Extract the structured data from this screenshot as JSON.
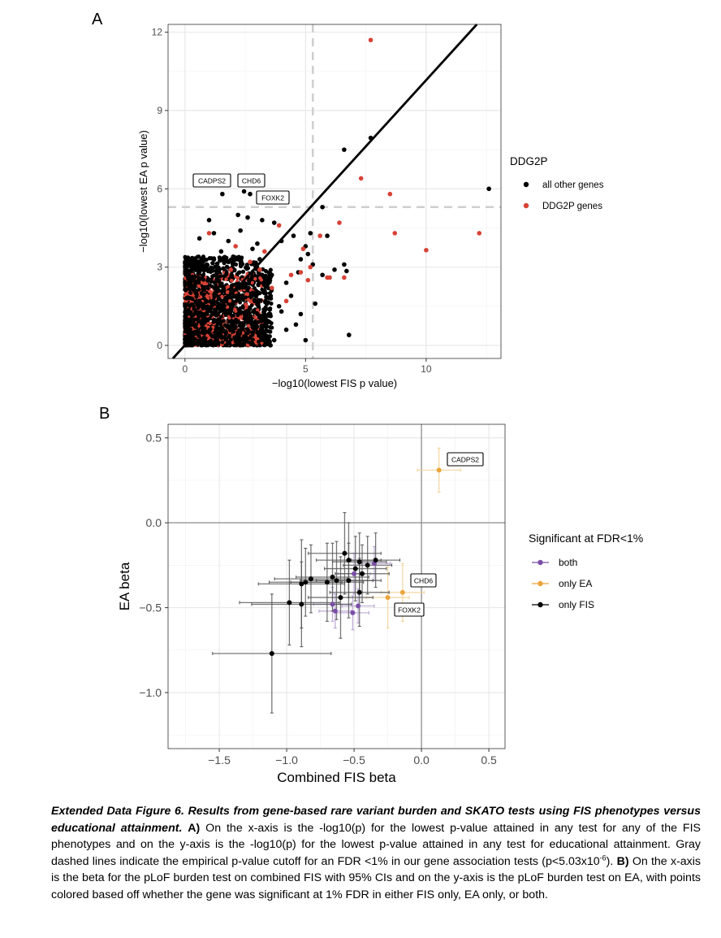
{
  "panel_a_letter": "A",
  "panel_b_letter": "B",
  "chart_data": [
    {
      "type": "scatter",
      "xlabel": "−log10(lowest FIS p value)",
      "ylabel": "−log10(lowest EA p value)",
      "xlim": [
        -0.7,
        13.1
      ],
      "ylim": [
        -0.5,
        12.3
      ],
      "xticks": [
        0,
        5,
        10
      ],
      "xtick_labels": [
        "0",
        "5",
        "10"
      ],
      "yticks": [
        0,
        3,
        6,
        9,
        12
      ],
      "ytick_labels": [
        "0",
        "3",
        "6",
        "9",
        "12"
      ],
      "grid": true,
      "reference_lines": {
        "diagonal": "y = x",
        "vertical_dashed_x": 5.3,
        "horizontal_dashed_y": 5.3
      },
      "legend": {
        "title": "DDG2P",
        "placement": "right"
      },
      "series": [
        {
          "name": "all other genes",
          "color": "#000000",
          "points": [
            [
              7.7,
              7.95
            ],
            [
              6.6,
              7.5
            ],
            [
              12.6,
              6.0
            ],
            [
              1.55,
              5.8
            ],
            [
              2.45,
              5.9
            ],
            [
              2.7,
              5.8
            ],
            [
              5.7,
              5.3
            ],
            [
              2.2,
              5.0
            ],
            [
              2.6,
              4.9
            ],
            [
              3.2,
              4.8
            ],
            [
              3.7,
              4.7
            ],
            [
              1.0,
              4.8
            ],
            [
              4.5,
              4.2
            ],
            [
              5.2,
              4.3
            ],
            [
              5.9,
              4.2
            ],
            [
              2.3,
              4.4
            ],
            [
              4.0,
              4.0
            ],
            [
              5.0,
              3.8
            ],
            [
              3.0,
              3.9
            ],
            [
              1.8,
              4.0
            ],
            [
              5.1,
              3.5
            ],
            [
              4.8,
              3.3
            ],
            [
              5.3,
              3.1
            ],
            [
              6.6,
              3.1
            ],
            [
              6.2,
              2.9
            ],
            [
              5.7,
              2.7
            ],
            [
              4.7,
              2.8
            ],
            [
              4.2,
              2.4
            ],
            [
              3.6,
              2.7
            ],
            [
              6.7,
              2.85
            ],
            [
              6.8,
              0.4
            ],
            [
              5.4,
              1.6
            ],
            [
              5.0,
              0.2
            ],
            [
              4.8,
              1.2
            ],
            [
              4.0,
              1.3
            ],
            [
              3.5,
              0.9
            ],
            [
              3.3,
              2.1
            ],
            [
              3.9,
              1.5
            ],
            [
              2.9,
              1.7
            ],
            [
              3.7,
              0.2
            ],
            [
              4.2,
              0.6
            ],
            [
              3.1,
              3.3
            ],
            [
              2.8,
              3.7
            ],
            [
              2.0,
              3.4
            ],
            [
              1.5,
              3.6
            ],
            [
              0.9,
              3.1
            ],
            [
              2.5,
              2.3
            ],
            [
              3.0,
              0.5
            ],
            [
              4.4,
              1.9
            ],
            [
              4.6,
              0.8
            ],
            [
              1.2,
              4.3
            ],
            [
              0.6,
              4.1
            ],
            [
              1.8,
              3.2
            ]
          ]
        },
        {
          "name": "DDG2P genes",
          "color": "#d84236",
          "points": [
            [
              7.7,
              11.7
            ],
            [
              7.3,
              6.4
            ],
            [
              8.5,
              5.8
            ],
            [
              6.4,
              4.7
            ],
            [
              8.7,
              4.3
            ],
            [
              10.0,
              3.65
            ],
            [
              12.2,
              4.3
            ],
            [
              5.6,
              4.2
            ],
            [
              4.9,
              3.7
            ],
            [
              3.9,
              4.6
            ],
            [
              5.2,
              3.0
            ],
            [
              5.9,
              2.6
            ],
            [
              6.0,
              2.6
            ],
            [
              6.6,
              2.6
            ],
            [
              4.8,
              2.8
            ],
            [
              2.7,
              3.2
            ],
            [
              2.1,
              3.8
            ],
            [
              1.0,
              4.3
            ],
            [
              3.3,
              3.6
            ],
            [
              4.4,
              2.7
            ],
            [
              5.1,
              2.5
            ],
            [
              3.6,
              2.2
            ],
            [
              4.2,
              1.7
            ],
            [
              1.9,
              2.9
            ],
            [
              2.4,
              2.5
            ],
            [
              3.1,
              2.9
            ]
          ]
        }
      ],
      "labels": [
        {
          "text": "CADPS2",
          "x": 1.5,
          "y": 5.8
        },
        {
          "text": "CHD6",
          "x": 2.6,
          "y": 5.9
        },
        {
          "text": "FOXK2",
          "x": 2.9,
          "y": 5.8
        }
      ]
    },
    {
      "type": "scatter",
      "xlabel": "Combined FIS beta",
      "ylabel": "EA beta",
      "xlim": [
        -1.88,
        0.62
      ],
      "ylim": [
        -1.33,
        0.58
      ],
      "xticks": [
        -1.5,
        -1.0,
        -0.5,
        0.0,
        0.5
      ],
      "xtick_labels": [
        "−1.5",
        "−1.0",
        "−0.5",
        "0.0",
        "0.5"
      ],
      "yticks": [
        0.5,
        0.0,
        -0.5,
        -1.0
      ],
      "ytick_labels": [
        "0.5",
        "0.0",
        "−0.5",
        "−1.0"
      ],
      "grid": true,
      "error_bars": "95% CI",
      "reference_lines": {
        "vertical_x": 0.0,
        "horizontal_y": 0.0
      },
      "legend": {
        "title": "Significant at FDR<1%",
        "placement": "right"
      },
      "series": [
        {
          "name": "both",
          "color": "#7b4fa8",
          "points": [
            {
              "x": -0.5,
              "y": -0.3,
              "xlo": -0.62,
              "xhi": -0.38,
              "ylo": -0.42,
              "yhi": -0.18
            },
            {
              "x": -0.66,
              "y": -0.48,
              "xlo": -0.8,
              "xhi": -0.52,
              "ylo": -0.58,
              "yhi": -0.38
            },
            {
              "x": -0.64,
              "y": -0.52,
              "xlo": -0.76,
              "xhi": -0.52,
              "ylo": -0.62,
              "yhi": -0.42
            },
            {
              "x": -0.51,
              "y": -0.53,
              "xlo": -0.63,
              "xhi": -0.39,
              "ylo": -0.63,
              "yhi": -0.43
            },
            {
              "x": -0.47,
              "y": -0.49,
              "xlo": -0.59,
              "xhi": -0.35,
              "ylo": -0.59,
              "yhi": -0.39
            },
            {
              "x": -0.35,
              "y": -0.24,
              "xlo": -0.47,
              "xhi": -0.23,
              "ylo": -0.34,
              "yhi": -0.14
            }
          ]
        },
        {
          "name": "only EA",
          "color": "#eba53b",
          "points": [
            {
              "x": 0.13,
              "y": 0.31,
              "xlo": -0.03,
              "xhi": 0.29,
              "ylo": 0.18,
              "yhi": 0.44
            },
            {
              "x": -0.14,
              "y": -0.41,
              "xlo": -0.3,
              "xhi": 0.02,
              "ylo": -0.58,
              "yhi": -0.24
            },
            {
              "x": -0.25,
              "y": -0.44,
              "xlo": -0.41,
              "xhi": -0.09,
              "ylo": -0.62,
              "yhi": -0.26
            }
          ]
        },
        {
          "name": "only FIS",
          "color": "#000000",
          "points": [
            {
              "x": -1.11,
              "y": -0.77,
              "xlo": -1.55,
              "xhi": -0.67,
              "ylo": -1.12,
              "yhi": -0.42
            },
            {
              "x": -0.98,
              "y": -0.47,
              "xlo": -1.35,
              "xhi": -0.61,
              "ylo": -0.72,
              "yhi": -0.22
            },
            {
              "x": -0.89,
              "y": -0.48,
              "xlo": -1.26,
              "xhi": -0.52,
              "ylo": -0.73,
              "yhi": -0.23
            },
            {
              "x": -0.89,
              "y": -0.36,
              "xlo": -1.21,
              "xhi": -0.57,
              "ylo": -0.62,
              "yhi": -0.1
            },
            {
              "x": -0.86,
              "y": -0.35,
              "xlo": -1.13,
              "xhi": -0.59,
              "ylo": -0.55,
              "yhi": -0.15
            },
            {
              "x": -0.82,
              "y": -0.33,
              "xlo": -1.09,
              "xhi": -0.55,
              "ylo": -0.53,
              "yhi": -0.13
            },
            {
              "x": -0.7,
              "y": -0.35,
              "xlo": -0.97,
              "xhi": -0.43,
              "ylo": -0.58,
              "yhi": -0.12
            },
            {
              "x": -0.66,
              "y": -0.32,
              "xlo": -0.93,
              "xhi": -0.39,
              "ylo": -0.52,
              "yhi": -0.12
            },
            {
              "x": -0.63,
              "y": -0.34,
              "xlo": -0.9,
              "xhi": -0.36,
              "ylo": -0.57,
              "yhi": -0.11
            },
            {
              "x": -0.6,
              "y": -0.44,
              "xlo": -0.84,
              "xhi": -0.36,
              "ylo": -0.68,
              "yhi": -0.2
            },
            {
              "x": -0.57,
              "y": -0.18,
              "xlo": -0.84,
              "xhi": -0.3,
              "ylo": -0.42,
              "yhi": 0.06
            },
            {
              "x": -0.54,
              "y": -0.22,
              "xlo": -0.78,
              "xhi": -0.3,
              "ylo": -0.44,
              "yhi": 0.0
            },
            {
              "x": -0.54,
              "y": -0.34,
              "xlo": -0.78,
              "xhi": -0.3,
              "ylo": -0.56,
              "yhi": -0.12
            },
            {
              "x": -0.49,
              "y": -0.27,
              "xlo": -0.72,
              "xhi": -0.26,
              "ylo": -0.46,
              "yhi": -0.08
            },
            {
              "x": -0.46,
              "y": -0.41,
              "xlo": -0.68,
              "xhi": -0.24,
              "ylo": -0.61,
              "yhi": -0.21
            },
            {
              "x": -0.46,
              "y": -0.23,
              "xlo": -0.66,
              "xhi": -0.26,
              "ylo": -0.4,
              "yhi": -0.06
            },
            {
              "x": -0.44,
              "y": -0.3,
              "xlo": -0.64,
              "xhi": -0.24,
              "ylo": -0.47,
              "yhi": -0.13
            },
            {
              "x": -0.4,
              "y": -0.25,
              "xlo": -0.58,
              "xhi": -0.22,
              "ylo": -0.42,
              "yhi": -0.08
            },
            {
              "x": -0.34,
              "y": -0.22,
              "xlo": -0.52,
              "xhi": -0.16,
              "ylo": -0.38,
              "yhi": -0.06
            }
          ]
        }
      ],
      "labels": [
        {
          "text": "CADPS2",
          "x": 0.13,
          "y": 0.31
        },
        {
          "text": "CHD6",
          "x": -0.14,
          "y": -0.41
        },
        {
          "text": "FOXK2",
          "x": -0.25,
          "y": -0.44
        }
      ]
    }
  ],
  "caption": {
    "title": "Extended Data Figure 6. Results from gene-based rare variant burden and SKATO tests using FIS phenotypes versus educational attainment.",
    "part_a_label": "A)",
    "part_a_text": "On the x-axis is the -log10(p) for the lowest p-value attained in any test for any of the FIS phenotypes and on the y-axis is the -log10(p) for the lowest p-value attained in any test for educational attainment. Gray dashed lines indicate the empirical p-value cutoff for an FDR <1% in our gene association tests (p<5.03x10",
    "exponent": "-6",
    "part_a_end": ").",
    "part_b_label": "B)",
    "part_b_text": "On the x-axis is the beta for the pLoF burden test on combined FIS with 95% CIs and on the y-axis is the pLoF burden test on EA, with points colored based off whether the gene was significant at 1% FDR in either FIS only, EA only, or both."
  }
}
